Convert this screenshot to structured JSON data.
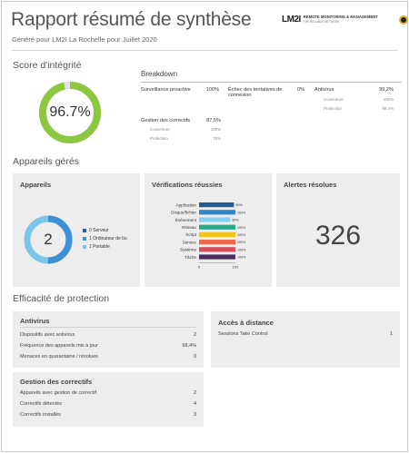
{
  "header": {
    "title": "Rapport résumé de synthèse",
    "subtitle": "Généré pour LM2I La Rochelle pour Juillet 2020",
    "logo_mark": "LM2I",
    "logo_text": "REMOTE MONITORING & MANAGEMENT",
    "logo_sub": "THE RELIABLE NETWORK"
  },
  "integrity": {
    "section_title": "Score d'intégrité",
    "score_label": "96.7%",
    "score_fraction": 0.967,
    "colors": {
      "fill": "#8dc63f",
      "track": "#e4e4e4"
    },
    "breakdown_title": "Breakdown",
    "items": [
      {
        "label": "Surveillance proactive",
        "value": "100%"
      },
      {
        "label": "Échec des tentatives de connexion",
        "value": "0%"
      },
      {
        "label": "Antivirus",
        "value": "99,2%",
        "subs": [
          {
            "label": "Couverture",
            "value": "100%"
          },
          {
            "label": "Protection",
            "value": "98,4%"
          }
        ]
      },
      {
        "label": "Gestion des correctifs",
        "value": "87,5%",
        "subs": [
          {
            "label": "Couverture",
            "value": "100%"
          },
          {
            "label": "Protection",
            "value": "75%"
          }
        ]
      }
    ]
  },
  "managed": {
    "section_title": "Appareils gérés",
    "devices": {
      "title": "Appareils",
      "center": "2",
      "legend": [
        {
          "label": "0 Serveur",
          "color": "#1c5f9e",
          "count": 0
        },
        {
          "label": "1 Ordinateur de bu",
          "color": "#3d8fd6",
          "count": 1
        },
        {
          "label": "1 Portable",
          "color": "#7cc4ea",
          "count": 1
        }
      ]
    },
    "checks": {
      "title": "Vérifications réussies",
      "axis_min": "0",
      "axis_max": "100"
    },
    "alerts": {
      "title": "Alertes résolues",
      "value": "326"
    }
  },
  "chart_data": {
    "type": "bar",
    "orientation": "horizontal",
    "title": "Vérifications réussies",
    "categories": [
      "Application",
      "Disque/fichier",
      "Événement",
      "Réseau",
      "Script",
      "Service",
      "Système",
      "Tâche"
    ],
    "values": [
      96,
      100,
      86,
      100,
      100,
      100,
      100,
      100
    ],
    "value_labels": [
      "96%",
      "100%",
      "86%",
      "100%",
      "100%",
      "100%",
      "100%",
      "100%"
    ],
    "colors": [
      "#1f5f99",
      "#2f86c9",
      "#86d0ef",
      "#2aa889",
      "#f0c21c",
      "#e86a4a",
      "#d94c5e",
      "#4a2c5f"
    ],
    "xlim": [
      0,
      100
    ],
    "xticks": [
      "0",
      "100"
    ]
  },
  "protection": {
    "section_title": "Efficacité de protection",
    "antivirus": {
      "title": "Antivirus",
      "rows": [
        {
          "label": "Dispositifs avec antivirus",
          "value": "2"
        },
        {
          "label": "Fréquence des appareils mis à jour",
          "value": "98,4%"
        },
        {
          "label": "Menaces en quarantaine / résolues",
          "value": "0"
        }
      ]
    },
    "remote": {
      "title": "Accès à distance",
      "rows": [
        {
          "label": "Sessions Take Control",
          "value": "1"
        }
      ]
    },
    "patch": {
      "title": "Gestion des correctifs",
      "rows": [
        {
          "label": "Appareils avec gestion de correctif",
          "value": "2"
        },
        {
          "label": "Correctifs détectés",
          "value": "4"
        },
        {
          "label": "Correctifs installés",
          "value": "3"
        }
      ]
    }
  }
}
